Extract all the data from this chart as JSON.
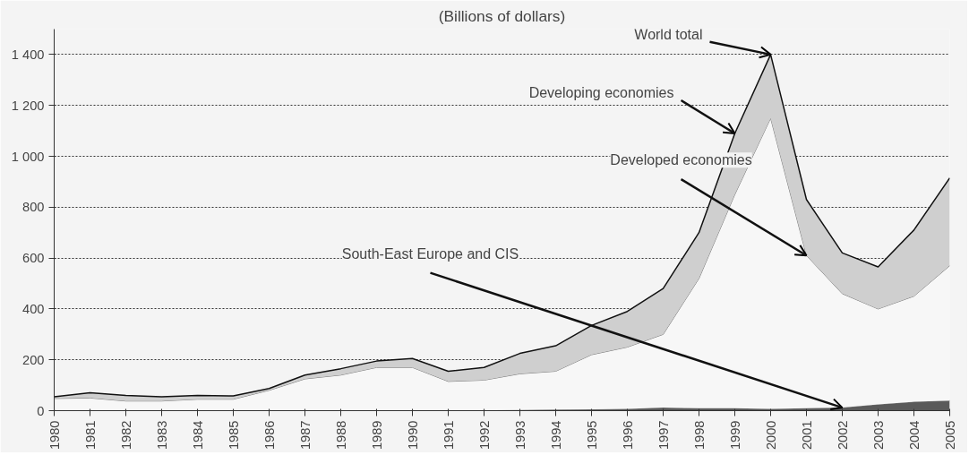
{
  "chart_data": {
    "type": "area",
    "title": "(Billions of dollars)",
    "stacked": true,
    "categories": [
      "1980",
      "1981",
      "1982",
      "1983",
      "1984",
      "1985",
      "1986",
      "1987",
      "1988",
      "1989",
      "1990",
      "1991",
      "1992",
      "1993",
      "1994",
      "1995",
      "1996",
      "1997",
      "1998",
      "1999",
      "2000",
      "2001",
      "2002",
      "2003",
      "2004",
      "2005"
    ],
    "series": [
      {
        "color": "#5a5a5a",
        "values": [
          0,
          0,
          0,
          0,
          0,
          0,
          0,
          0,
          0,
          0,
          0,
          0,
          2,
          3,
          4,
          5,
          7,
          12,
          10,
          10,
          7,
          10,
          12,
          25,
          35,
          40
        ]
      },
      {
        "color": "#f7f7f7",
        "values": [
          48,
          50,
          38,
          38,
          45,
          45,
          80,
          125,
          140,
          170,
          170,
          115,
          118,
          142,
          151,
          215,
          243,
          288,
          510,
          840,
          1143,
          600,
          448,
          375,
          415,
          530
        ]
      },
      {
        "color": "#cfcfcf",
        "values": [
          7,
          20,
          22,
          17,
          15,
          13,
          7,
          15,
          25,
          25,
          35,
          40,
          50,
          80,
          100,
          115,
          140,
          180,
          180,
          240,
          250,
          220,
          160,
          165,
          260,
          345
        ]
      }
    ],
    "ylim": [
      0,
      1500
    ],
    "yticks": [
      0,
      200,
      400,
      600,
      800,
      {
        "value": 1000,
        "label": "1 000"
      },
      {
        "value": 1200,
        "label": "1 200"
      },
      {
        "value": 1400,
        "label": "1 400"
      }
    ],
    "grid": "y",
    "annotations": [
      {
        "text": "World total",
        "x": "2000",
        "y": 1400
      },
      {
        "text": "Developing economies",
        "x": "1999",
        "y": 1090
      },
      {
        "text": "Developed economies",
        "x": "2001",
        "y": 610
      },
      {
        "text": "South-East Europe and CIS",
        "x": "2002",
        "y": 12
      }
    ]
  }
}
